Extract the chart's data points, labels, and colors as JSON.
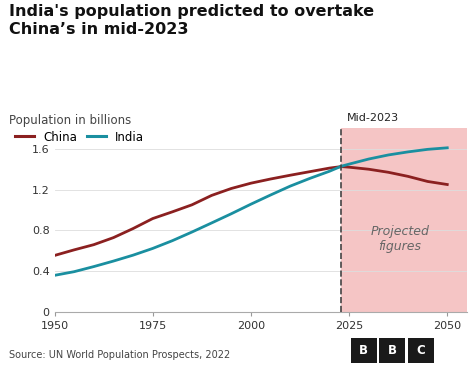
{
  "title": "India's population predicted to overtake\nChina’s in mid-2023",
  "ylabel": "Population in billions",
  "source": "Source: UN World Population Prospects, 2022",
  "mid_year": 2023,
  "projection_color": "#f5c5c5",
  "china_color": "#8b2020",
  "india_color": "#1a8fa0",
  "china_label": "China",
  "india_label": "India",
  "mid_label": "Mid-2023",
  "proj_label": "Projected\nfigures",
  "xlim": [
    1950,
    2055
  ],
  "ylim": [
    0,
    1.8
  ],
  "yticks": [
    0,
    0.4,
    0.8,
    1.2,
    1.6
  ],
  "xticks": [
    1950,
    1975,
    2000,
    2025,
    2050
  ],
  "china_years": [
    1950,
    1955,
    1960,
    1965,
    1970,
    1975,
    1980,
    1985,
    1990,
    1995,
    2000,
    2005,
    2010,
    2015,
    2020,
    2023,
    2025,
    2030,
    2035,
    2040,
    2045,
    2050
  ],
  "china_pop": [
    0.554,
    0.609,
    0.66,
    0.729,
    0.818,
    0.916,
    0.982,
    1.051,
    1.143,
    1.211,
    1.263,
    1.304,
    1.341,
    1.376,
    1.411,
    1.426,
    1.42,
    1.4,
    1.37,
    1.33,
    1.28,
    1.25
  ],
  "india_years": [
    1950,
    1955,
    1960,
    1965,
    1970,
    1975,
    1980,
    1985,
    1990,
    1995,
    2000,
    2005,
    2010,
    2015,
    2020,
    2023,
    2025,
    2030,
    2035,
    2040,
    2045,
    2050
  ],
  "india_pop": [
    0.359,
    0.395,
    0.445,
    0.499,
    0.557,
    0.623,
    0.699,
    0.784,
    0.873,
    0.963,
    1.057,
    1.147,
    1.234,
    1.31,
    1.38,
    1.429,
    1.45,
    1.5,
    1.54,
    1.57,
    1.595,
    1.61
  ]
}
